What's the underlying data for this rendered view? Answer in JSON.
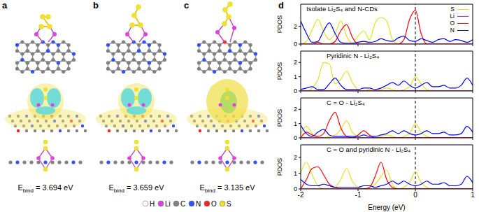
{
  "structures": [
    {
      "label": "a",
      "energy_symbol": "E",
      "energy_subscript": "bind",
      "energy_text": " = 3.694 eV"
    },
    {
      "label": "b",
      "energy_symbol": "E",
      "energy_subscript": "bind",
      "energy_text": " = 3.659 eV"
    },
    {
      "label": "c",
      "energy_symbol": "E",
      "energy_subscript": "bind",
      "energy_text": " = 3.135 eV"
    }
  ],
  "atoms": [
    {
      "symbol": "H",
      "color": "#ffffff"
    },
    {
      "symbol": "Li",
      "color": "#e040e0"
    },
    {
      "symbol": "C",
      "color": "#808080"
    },
    {
      "symbol": "N",
      "color": "#3050f8"
    },
    {
      "symbol": "O",
      "color": "#ff2020"
    },
    {
      "symbol": "S",
      "color": "#f0e030"
    }
  ],
  "pdos_label": "d",
  "chart_data": [
    {
      "type": "line",
      "title": "Isolate Li₂S₄ and N-CDs",
      "y_label": "PDOS",
      "legend": "upper right",
      "tick_labels": "y",
      "reference_x": 0,
      "xlim": [
        -2,
        1
      ],
      "xticks": [
        -2,
        -1,
        0,
        1
      ],
      "ylim": [
        0,
        4.5
      ],
      "yticks": [
        0,
        2
      ],
      "x": [
        -2,
        -1.9,
        -1.8,
        -1.7,
        -1.6,
        -1.5,
        -1.4,
        -1.3,
        -1.2,
        -1.1,
        -1,
        -0.9,
        -0.8,
        -0.7,
        -0.6,
        -0.5,
        -0.4,
        -0.3,
        -0.2,
        -0.1,
        0,
        0.1,
        0.2,
        0.3,
        0.4,
        0.5,
        0.6,
        0.7,
        0.8,
        0.9,
        1
      ],
      "series": [
        {
          "name": "S",
          "color": "#e6e020",
          "values": [
            0,
            0.3,
            1.6,
            2.8,
            1.4,
            0.5,
            1.2,
            2.6,
            0.9,
            0.1,
            0.9,
            1.5,
            0.5,
            2.4,
            3,
            2.6,
            0.5,
            0,
            0,
            0,
            0,
            0,
            0,
            0,
            0,
            0,
            0,
            0,
            0,
            0,
            0
          ]
        },
        {
          "name": "Li",
          "color": "#ff00ff",
          "values": [
            0,
            0,
            0,
            0,
            0,
            0,
            0,
            0,
            0,
            0,
            0,
            0,
            0,
            0,
            0,
            0,
            0,
            0,
            0,
            0,
            0,
            0,
            0,
            0,
            0,
            0,
            0,
            0,
            0,
            0,
            0
          ]
        },
        {
          "name": "O",
          "color": "#ff0000",
          "values": [
            0,
            0,
            0,
            0.2,
            0,
            0,
            0.3,
            1.5,
            2.2,
            0.8,
            0,
            0,
            0,
            0,
            0,
            0,
            0,
            0,
            0.5,
            2.8,
            3.8,
            1.2,
            0,
            0,
            0,
            0,
            0,
            0,
            0,
            0,
            0
          ]
        },
        {
          "name": "N",
          "color": "#0000ff",
          "values": [
            2.6,
            1.2,
            0.2,
            0.3,
            1.5,
            2.4,
            1.2,
            0.2,
            0.1,
            0.1,
            0.2,
            0.3,
            0.2,
            0.3,
            0.6,
            0.4,
            0.3,
            0.7,
            0.9,
            0.4,
            0.3,
            0.6,
            0.4,
            0.2,
            0.5,
            0.6,
            0.3,
            0.5,
            0.4,
            0.2,
            0.5
          ]
        }
      ]
    },
    {
      "type": "line",
      "title": "Pyridinic N - Li₂S₄",
      "y_label": "PDOS",
      "legend": "none",
      "tick_labels": "y",
      "reference_x": 0,
      "xlim": [
        -2,
        1
      ],
      "xticks": [
        -2,
        -1,
        0,
        1
      ],
      "ylim": [
        0,
        2.8
      ],
      "yticks": [
        0,
        1,
        2
      ],
      "x": [
        -2,
        -1.9,
        -1.8,
        -1.7,
        -1.6,
        -1.5,
        -1.4,
        -1.3,
        -1.2,
        -1.1,
        -1,
        -0.9,
        -0.8,
        -0.7,
        -0.6,
        -0.5,
        -0.4,
        -0.3,
        -0.2,
        -0.1,
        0,
        0.1,
        0.2,
        0.3,
        0.4,
        0.5,
        0.6,
        0.7,
        0.8,
        0.9,
        1
      ],
      "series": [
        {
          "name": "S",
          "color": "#e6e020",
          "values": [
            0,
            0,
            0.2,
            0.8,
            2,
            1.9,
            0.5,
            0.8,
            1.4,
            0.6,
            0.1,
            0,
            0.1,
            0,
            0.1,
            0.2,
            0.1,
            0,
            0.1,
            0.3,
            1,
            0.5,
            0.1,
            0,
            0,
            0,
            0,
            0,
            0,
            0,
            0
          ]
        },
        {
          "name": "Li",
          "color": "#ff00ff",
          "values": [
            0,
            0,
            0,
            0,
            0,
            0,
            0,
            0,
            0,
            0,
            0,
            0,
            0,
            0,
            0,
            0,
            0,
            0,
            0,
            0,
            0,
            0,
            0,
            0,
            0,
            0,
            0,
            0,
            0,
            0,
            0
          ]
        },
        {
          "name": "O",
          "color": "#ff0000",
          "values": [
            0,
            0,
            0,
            0,
            0,
            0,
            0,
            0,
            0,
            0,
            0,
            0,
            0,
            0,
            0,
            0,
            0,
            0,
            0,
            0,
            0,
            0,
            0,
            0,
            0,
            0,
            0,
            0,
            0,
            0,
            0
          ]
        },
        {
          "name": "N",
          "color": "#0000ff",
          "values": [
            0.1,
            0.2,
            0.3,
            0.1,
            0.1,
            0.5,
            0.9,
            0.4,
            0.1,
            0.1,
            0.1,
            0.2,
            0.2,
            0.1,
            0.2,
            0.4,
            0.6,
            0.4,
            0.7,
            0.4,
            0.2,
            0.4,
            0.6,
            0.3,
            0.3,
            0.4,
            0.2,
            0.2,
            0.4,
            0.9,
            0.4
          ]
        }
      ]
    },
    {
      "type": "line",
      "title": "C = O - Li₂S₄",
      "y_label": "PDOS",
      "legend": "none",
      "tick_labels": "y",
      "reference_x": 0,
      "xlim": [
        -2,
        1
      ],
      "xticks": [
        -2,
        -1,
        0,
        1
      ],
      "ylim": [
        0,
        2.8
      ],
      "yticks": [
        0,
        1,
        2
      ],
      "x": [
        -2,
        -1.9,
        -1.8,
        -1.7,
        -1.6,
        -1.5,
        -1.4,
        -1.3,
        -1.2,
        -1.1,
        -1,
        -0.9,
        -0.8,
        -0.7,
        -0.6,
        -0.5,
        -0.4,
        -0.3,
        -0.2,
        -0.1,
        0,
        0.1,
        0.2,
        0.3,
        0.4,
        0.5,
        0.6,
        0.7,
        0.8,
        0.9,
        1
      ],
      "series": [
        {
          "name": "S",
          "color": "#e6e020",
          "values": [
            0.3,
            0.8,
            0.3,
            0,
            0,
            0.1,
            0.2,
            0.6,
            1.2,
            0.4,
            0.1,
            0,
            0,
            0,
            0.1,
            0.2,
            0.1,
            0,
            0.1,
            0.3,
            1,
            0.4,
            0.1,
            0,
            0,
            0,
            0,
            0,
            0,
            0,
            0
          ]
        },
        {
          "name": "Li",
          "color": "#ff00ff",
          "values": [
            0,
            0,
            0,
            0,
            0,
            0,
            0,
            0,
            0,
            0,
            0,
            0,
            0,
            0,
            0,
            0,
            0,
            0,
            0,
            0,
            0,
            0,
            0,
            0,
            0,
            0,
            0,
            0,
            0,
            0,
            0
          ]
        },
        {
          "name": "O",
          "color": "#ff0000",
          "values": [
            0,
            0.4,
            0.2,
            0.1,
            0.3,
            1.2,
            1.8,
            0.7,
            0.1,
            0,
            0.2,
            0.5,
            0.2,
            0,
            0,
            0,
            0,
            0,
            0,
            0,
            0,
            0,
            0,
            0,
            0,
            0,
            0,
            0,
            0,
            0,
            0
          ]
        },
        {
          "name": "N",
          "color": "#0000ff",
          "values": [
            0.9,
            0.3,
            0.1,
            0.4,
            0.6,
            0.2,
            0.1,
            0.1,
            0.1,
            0.1,
            0.1,
            0.2,
            0.1,
            0.1,
            0.2,
            0.3,
            0.5,
            0.3,
            0.5,
            0.3,
            0.2,
            0.3,
            0.5,
            0.3,
            0.3,
            0.4,
            0.2,
            0.2,
            0.3,
            0.8,
            0.4
          ]
        }
      ]
    },
    {
      "type": "line",
      "title": "C = O and pyridinic N - Li₂S₄",
      "y_label": "PDOS",
      "x_label": "Energy (eV)",
      "legend": "none",
      "reference_x": 0,
      "xlim": [
        -2,
        1
      ],
      "xticks": [
        -2,
        -1,
        0,
        1
      ],
      "ylim": [
        0,
        2.8
      ],
      "yticks": [
        0,
        1,
        2
      ],
      "x": [
        -2,
        -1.9,
        -1.8,
        -1.7,
        -1.6,
        -1.5,
        -1.4,
        -1.3,
        -1.2,
        -1.1,
        -1,
        -0.9,
        -0.8,
        -0.7,
        -0.6,
        -0.5,
        -0.4,
        -0.3,
        -0.2,
        -0.1,
        0,
        0.1,
        0.2,
        0.3,
        0.4,
        0.5,
        0.6,
        0.7,
        0.8,
        0.9,
        1
      ],
      "series": [
        {
          "name": "S",
          "color": "#e6e020",
          "values": [
            1,
            1.7,
            0.9,
            0.2,
            0,
            0,
            0.1,
            0.6,
            1.3,
            0.5,
            0.1,
            0,
            0.1,
            0.3,
            0.8,
            1.2,
            0.3,
            0,
            0.1,
            0.4,
            1.1,
            0.4,
            0.1,
            0,
            0,
            0,
            0,
            0,
            0,
            0,
            0
          ]
        },
        {
          "name": "Li",
          "color": "#ff00ff",
          "values": [
            0,
            0,
            0,
            0,
            0,
            0,
            0,
            0,
            0,
            0,
            0,
            0,
            0,
            0,
            0,
            0,
            0,
            0,
            0,
            0,
            0,
            0,
            0,
            0,
            0,
            0,
            0,
            0,
            0,
            0,
            0
          ]
        },
        {
          "name": "O",
          "color": "#ff0000",
          "values": [
            0,
            0.6,
            1.3,
            1.4,
            0.9,
            0.3,
            0.1,
            0,
            0,
            0,
            0,
            0,
            0.1,
            0.8,
            1.7,
            0.6,
            0.1,
            0,
            0,
            0,
            0,
            0,
            0,
            0,
            0,
            0,
            0,
            0,
            0,
            0,
            0
          ]
        },
        {
          "name": "N",
          "color": "#0000ff",
          "values": [
            0.6,
            0.3,
            0.2,
            0.2,
            0.3,
            0.2,
            0.1,
            0.1,
            0.1,
            0.1,
            0.1,
            0.2,
            0.2,
            0.1,
            0.2,
            0.3,
            0.5,
            0.3,
            0.5,
            0.3,
            0.2,
            0.3,
            0.5,
            0.3,
            0.3,
            0.4,
            0.2,
            0.2,
            0.3,
            0.8,
            0.4
          ]
        }
      ]
    }
  ]
}
